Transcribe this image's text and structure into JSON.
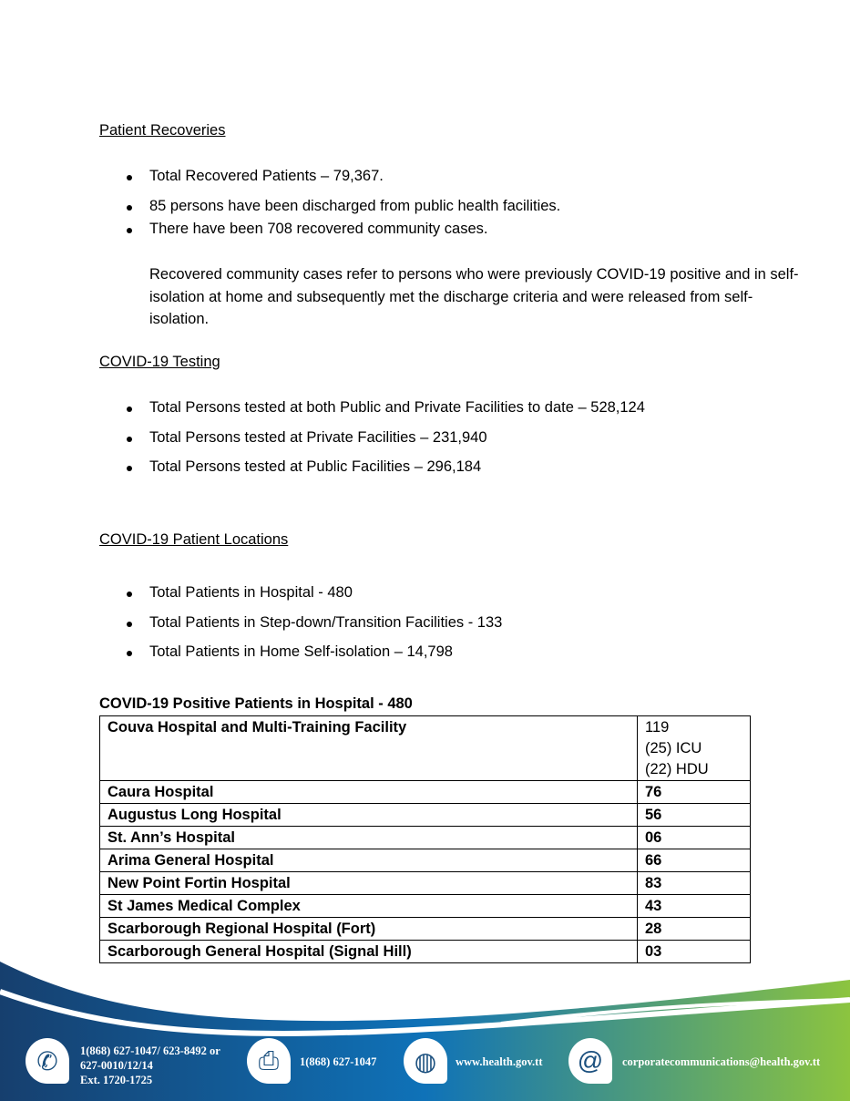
{
  "recoveries": {
    "heading": "Patient Recoveries",
    "bullets": [
      "Total Recovered Patients – 79,367.",
      "85 persons have been discharged from public health facilities.",
      "There have been 708 recovered community cases."
    ],
    "note": "Recovered community cases refer to persons who were previously COVID-19 positive and in self-isolation at home and subsequently met the discharge criteria and were released from self-isolation."
  },
  "testing": {
    "heading": "COVID-19 Testing",
    "bullets": [
      "Total Persons tested at both Public and Private Facilities  to date – 528,124",
      "Total Persons tested at Private Facilities – 231,940",
      "Total Persons tested at Public Facilities – 296,184"
    ]
  },
  "locations": {
    "heading": "COVID-19 Patient Locations",
    "bullets": [
      "Total Patients in Hospital - 480",
      "Total Patients in Step-down/Transition Facilities - 133",
      "Total Patients in Home Self-isolation – 14,798"
    ]
  },
  "hospital_table": {
    "title": "COVID-19 Positive Patients in Hospital - 480",
    "first_row": {
      "name": "Couva Hospital and Multi-Training Facility",
      "lines": [
        "119",
        "(25) ICU",
        "(22) HDU"
      ]
    },
    "rows": [
      [
        "Caura Hospital",
        "76"
      ],
      [
        "Augustus Long Hospital",
        "56"
      ],
      [
        "St. Ann’s Hospital",
        "06"
      ],
      [
        "Arima General Hospital",
        "66"
      ],
      [
        "New Point Fortin Hospital",
        "83"
      ],
      [
        "St James Medical Complex",
        "43"
      ],
      [
        "Scarborough Regional Hospital (Fort)",
        "28"
      ],
      [
        "Scarborough General Hospital (Signal Hill)",
        "03"
      ]
    ]
  },
  "footer": {
    "phone_lines": [
      "1(868) 627-1047/ 623-8492 or",
      "627-0010/12/14",
      "Ext. 1720-1725"
    ],
    "fax": "1(868) 627-1047",
    "website": "www.health.gov.tt",
    "email": "corporatecommunications@health.gov.tt",
    "colors": {
      "dark": "#163f6e",
      "mid": "#0f72b8",
      "green": "#8cc43f"
    }
  }
}
